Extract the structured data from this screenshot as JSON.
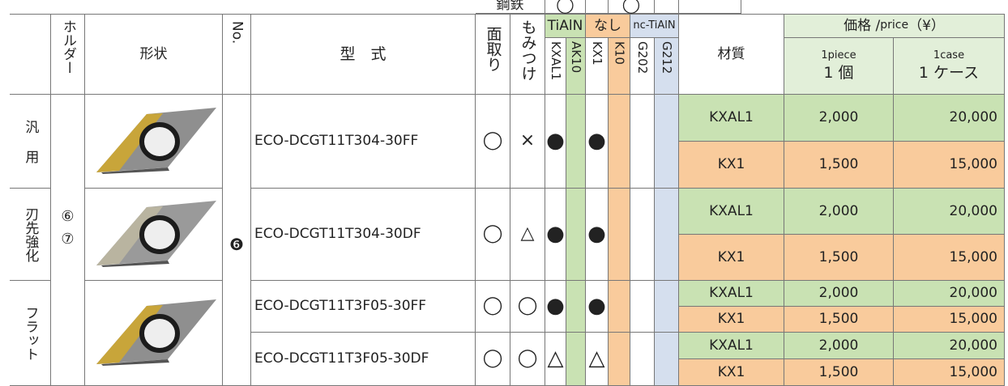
{
  "top_fragment": {
    "label": "鋼鉄",
    "marks": [
      "◯",
      "◯"
    ]
  },
  "header": {
    "holder": "ホルダー",
    "shape": "形状",
    "number": "No.",
    "model": "型　式",
    "chamfer": "面取り",
    "momitsuke": "もみつけ",
    "coatings": [
      {
        "name": "TiAlN",
        "grades": [
          "KXAL1",
          "AK10"
        ]
      },
      {
        "name": "なし",
        "grades": [
          "KX1",
          "K10"
        ]
      },
      {
        "name": "nc-TiAlN",
        "grades": [
          "G202",
          "G212"
        ]
      }
    ],
    "material": "材質",
    "price": {
      "title": "価格 /",
      "title_en": "price",
      "currency": "（¥）",
      "piece_en": "1piece",
      "piece": "1 個",
      "case_en": "1case",
      "case": "1 ケース"
    }
  },
  "holder": [
    "⑥",
    "⑦"
  ],
  "number": "❻",
  "groups": [
    {
      "category": "汎用",
      "models": [
        {
          "model": "ECO-DCGT11T304-30FF",
          "chamfer": "◯",
          "momitsuke": "×",
          "marks": {
            "KXAL1": "●",
            "KX1": "●"
          },
          "prices": [
            {
              "material": "KXAL1",
              "piece": "2,000",
              "case": "20,000"
            },
            {
              "material": "KX1",
              "piece": "1,500",
              "case": "15,000"
            }
          ]
        }
      ]
    },
    {
      "category": "刃先強化",
      "models": [
        {
          "model": "ECO-DCGT11T304-30DF",
          "chamfer": "◯",
          "momitsuke": "△",
          "marks": {
            "KXAL1": "●",
            "KX1": "●"
          },
          "prices": [
            {
              "material": "KXAL1",
              "piece": "2,000",
              "case": "20,000"
            },
            {
              "material": "KX1",
              "piece": "1,500",
              "case": "15,000"
            }
          ]
        }
      ]
    },
    {
      "category": "フラット",
      "models": [
        {
          "model": "ECO-DCGT11T3F05-30FF",
          "chamfer": "◯",
          "momitsuke": "◯",
          "marks": {
            "KXAL1": "●",
            "KX1": "●"
          },
          "prices": [
            {
              "material": "KXAL1",
              "piece": "2,000",
              "case": "20,000"
            },
            {
              "material": "KX1",
              "piece": "1,500",
              "case": "15,000"
            }
          ]
        },
        {
          "model": "ECO-DCGT11T3F05-30DF",
          "chamfer": "◯",
          "momitsuke": "◯",
          "marks": {
            "KXAL1": "△",
            "KX1": "△"
          },
          "prices": [
            {
              "material": "KXAL1",
              "piece": "2,000",
              "case": "20,000"
            },
            {
              "material": "KX1",
              "piece": "1,500",
              "case": "15,000"
            }
          ]
        }
      ]
    }
  ]
}
